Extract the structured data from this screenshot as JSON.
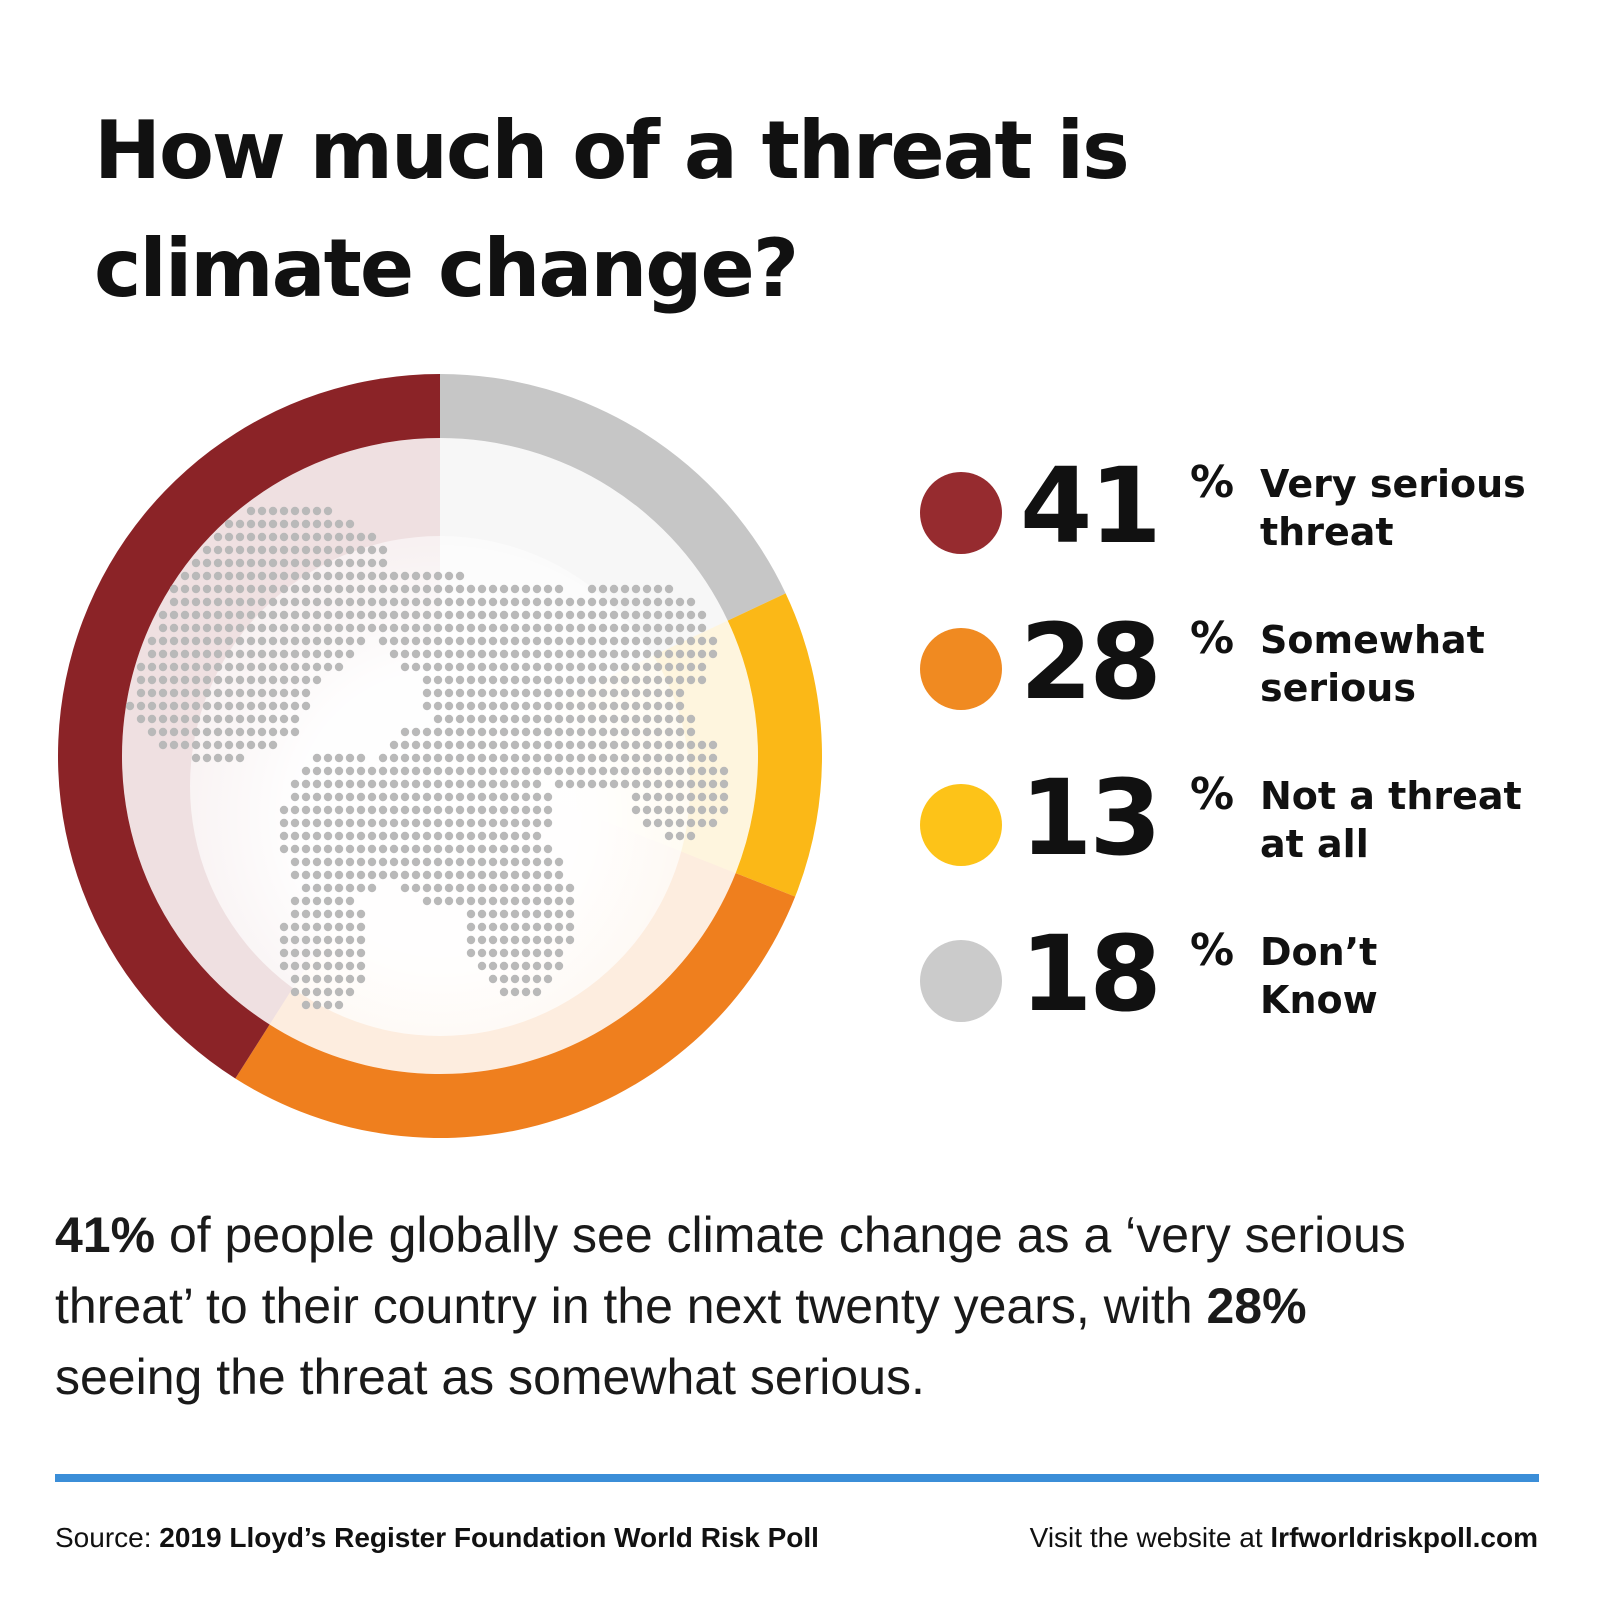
{
  "title": {
    "line1": "How much of a threat is",
    "line2": "climate change?"
  },
  "chart_data": {
    "type": "pie",
    "style": "donut",
    "categories": [
      "Very serious threat",
      "Somewhat serious",
      "Not a threat at all",
      "Don't Know"
    ],
    "values": [
      41,
      28,
      13,
      18
    ],
    "unit": "%",
    "colors": [
      "#8b2327",
      "#ef7f1e",
      "#fbb817",
      "#c6c6c6"
    ],
    "slice_order_clockwise_from_top": [
      "Don't Know",
      "Not a threat at all",
      "Somewhat serious",
      "Very serious threat"
    ],
    "center_graphic": "dotted-globe-icon",
    "legend_position": "right"
  },
  "legend": [
    {
      "value": "41",
      "unit": "%",
      "label_line1": "Very serious",
      "label_line2": "threat",
      "color": "#962b2f"
    },
    {
      "value": "28",
      "unit": "%",
      "label_line1": "Somewhat",
      "label_line2": "serious",
      "color": "#f08a21"
    },
    {
      "value": "13",
      "unit": "%",
      "label_line1": "Not a threat",
      "label_line2": "at all",
      "color": "#fdc318"
    },
    {
      "value": "18",
      "unit": "%",
      "label_line1": "Don’t",
      "label_line2": "Know",
      "color": "#cbcbcb"
    }
  ],
  "summary": {
    "l1_bold": "41%",
    "l1_text": " of people globally see climate change as a ‘very serious",
    "l2_text": "threat’ to their country in the next twenty years, with ",
    "l2_bold": "28%",
    "l3_text": "seeing the threat as somewhat serious."
  },
  "footer": {
    "source_prefix": "Source: ",
    "source_name": "2019 Lloyd’s Register Foundation World Risk Poll",
    "website_prefix": "Visit the website at ",
    "website_url": "lrfworldriskpoll.com",
    "rule_color": "#3b8ed8"
  }
}
